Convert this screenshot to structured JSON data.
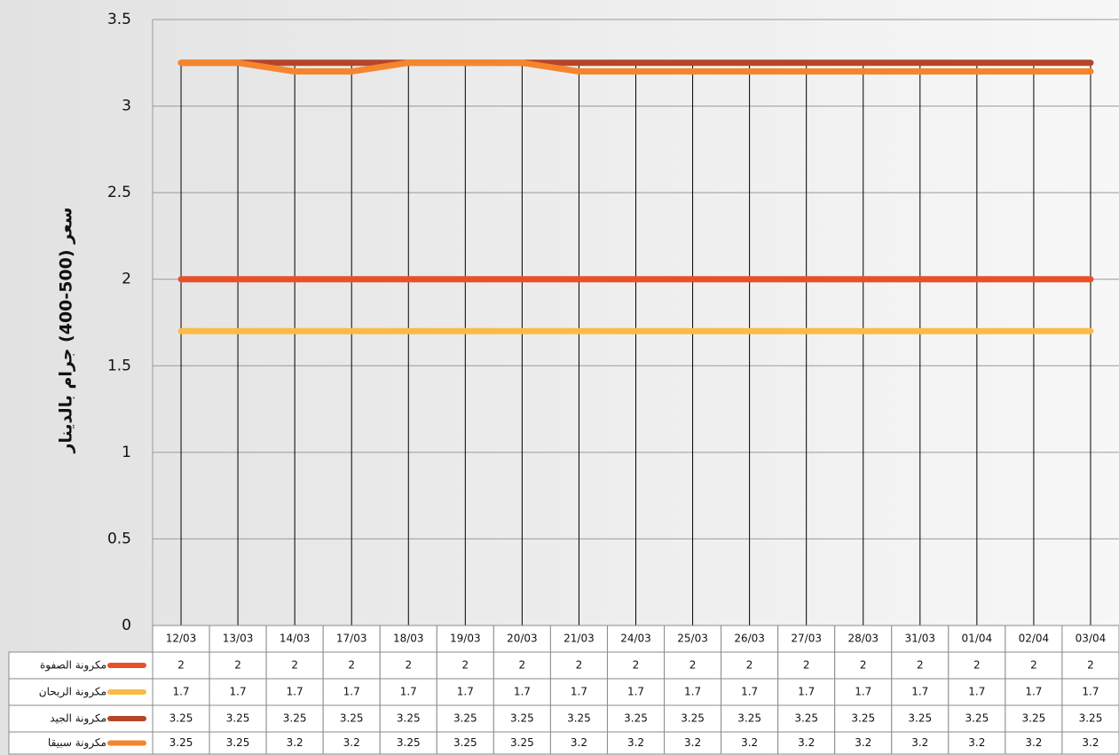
{
  "chart_data": {
    "type": "line",
    "y_label": "سعر (500-400) جرام بالدينار",
    "categories": [
      "12/03",
      "13/03",
      "14/03",
      "17/03",
      "18/03",
      "19/03",
      "20/03",
      "21/03",
      "24/03",
      "25/03",
      "26/03",
      "27/03",
      "28/03",
      "31/03",
      "01/04",
      "02/04",
      "03/04"
    ],
    "series": [
      {
        "name": "مكرونة الصفوة",
        "color": "#e8502a",
        "values": [
          2,
          2,
          2,
          2,
          2,
          2,
          2,
          2,
          2,
          2,
          2,
          2,
          2,
          2,
          2,
          2,
          2
        ]
      },
      {
        "name": "مكرونة الريحان",
        "color": "#fbbb48",
        "values": [
          1.7,
          1.7,
          1.7,
          1.7,
          1.7,
          1.7,
          1.7,
          1.7,
          1.7,
          1.7,
          1.7,
          1.7,
          1.7,
          1.7,
          1.7,
          1.7,
          1.7
        ]
      },
      {
        "name": "مكرونة الجيد",
        "color": "#b5462a",
        "values": [
          3.25,
          3.25,
          3.25,
          3.25,
          3.25,
          3.25,
          3.25,
          3.25,
          3.25,
          3.25,
          3.25,
          3.25,
          3.25,
          3.25,
          3.25,
          3.25,
          3.25
        ]
      },
      {
        "name": "مكرونة سبيقا",
        "color": "#f5852d",
        "values": [
          3.25,
          3.25,
          3.2,
          3.2,
          3.25,
          3.25,
          3.25,
          3.2,
          3.2,
          3.2,
          3.2,
          3.2,
          3.2,
          3.2,
          3.2,
          3.2,
          3.2
        ]
      }
    ],
    "ylim": [
      0,
      3.5
    ],
    "yticks": [
      0,
      0.5,
      1,
      1.5,
      2,
      2.5,
      3,
      3.5
    ],
    "grid": true
  }
}
